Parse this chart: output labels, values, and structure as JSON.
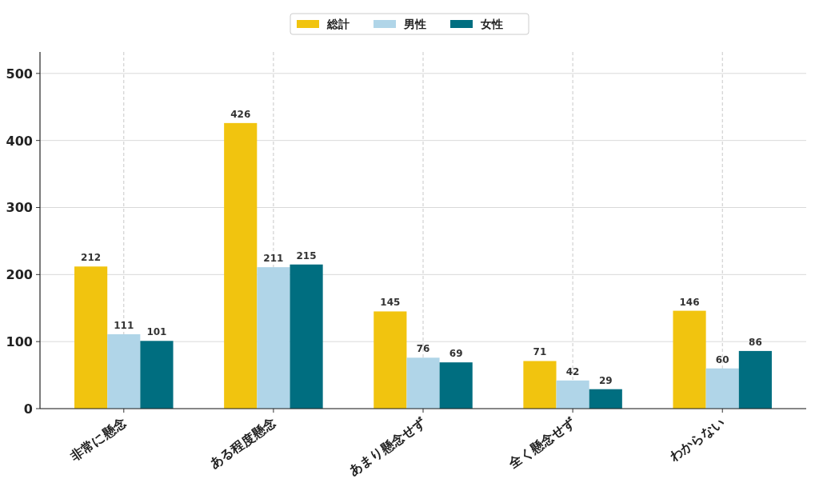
{
  "chart_data": {
    "type": "bar",
    "categories": [
      "非常に懸念",
      "ある程度懸念",
      "あまり懸念せず",
      "全く懸念せず",
      "わからない"
    ],
    "series": [
      {
        "name": "総計",
        "color": "#f1c40f",
        "values": [
          212,
          426,
          145,
          71,
          146
        ]
      },
      {
        "name": "男性",
        "color": "#b0d5e8",
        "values": [
          111,
          211,
          76,
          42,
          60
        ]
      },
      {
        "name": "女性",
        "color": "#006e80",
        "values": [
          101,
          215,
          69,
          29,
          86
        ]
      }
    ],
    "ylim": [
      0,
      532
    ],
    "yticks": [
      0,
      100,
      200,
      300,
      400,
      500
    ],
    "grid": true,
    "legend": "top",
    "data_labels": true
  }
}
